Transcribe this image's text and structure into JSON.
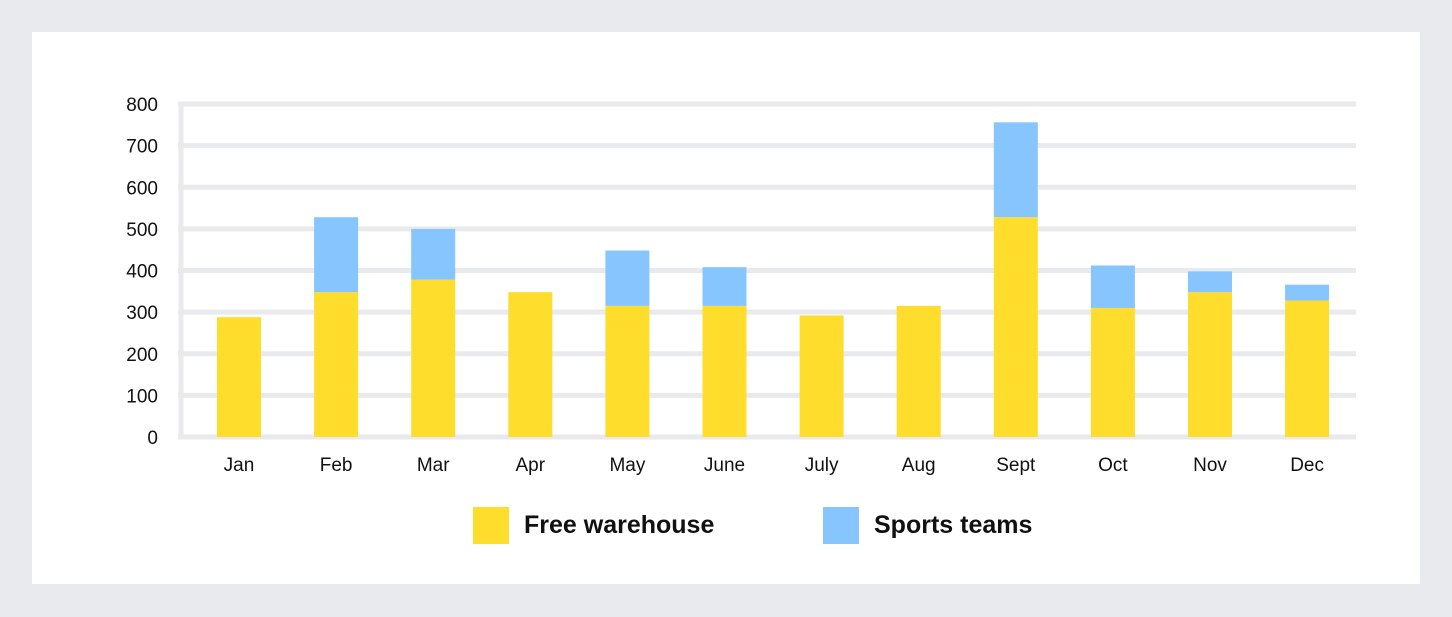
{
  "chart_data": {
    "type": "bar",
    "stacked": true,
    "title": "",
    "xlabel": "",
    "ylabel": "",
    "ylim": [
      0,
      800
    ],
    "yticks": [
      0,
      100,
      200,
      300,
      400,
      500,
      600,
      700,
      800
    ],
    "grid": "horizontal",
    "legend_position": "bottom-center",
    "categories": [
      "Jan",
      "Feb",
      "Mar",
      "Apr",
      "May",
      "June",
      "July",
      "Aug",
      "Sept",
      "Oct",
      "Nov",
      "Dec"
    ],
    "series": [
      {
        "name": "Free warehouse",
        "color": "#ffdd2c",
        "values": [
          288,
          348,
          378,
          348,
          315,
          315,
          292,
          315,
          528,
          310,
          348,
          328
        ]
      },
      {
        "name": "Sports teams",
        "color": "#87c5ff",
        "values": [
          0,
          180,
          122,
          0,
          133,
          93,
          0,
          0,
          228,
          102,
          50,
          38
        ]
      }
    ]
  },
  "colors": {
    "background": "#e9eaee",
    "card": "#ffffff",
    "gridline": "#e9eaee",
    "text": "#111111"
  }
}
